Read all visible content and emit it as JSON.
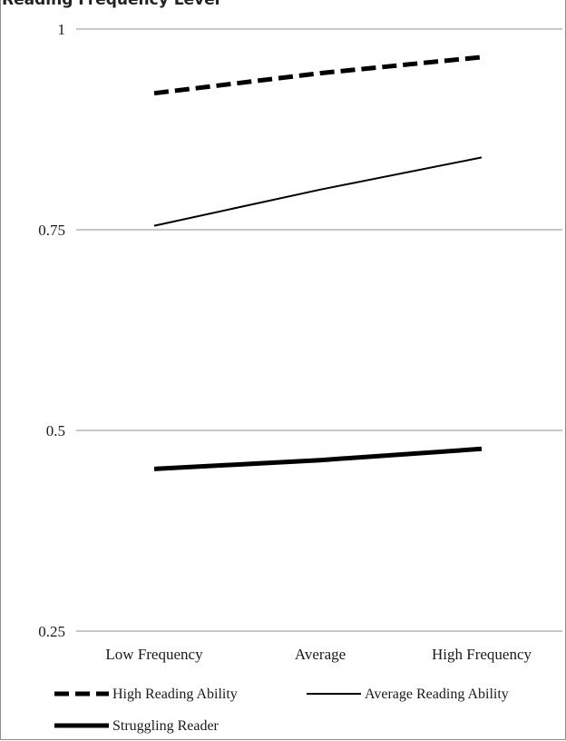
{
  "chart_data": {
    "type": "line",
    "title": "Reading Frequency Level",
    "xlabel": "",
    "ylabel": "",
    "categories": [
      "Low Frequency",
      "Average",
      "High Frequency"
    ],
    "ylim": [
      0.25,
      1
    ],
    "yticks": [
      "0.25",
      "0.5",
      "0.75",
      "1"
    ],
    "grid": true,
    "legend_position": "bottom",
    "series": [
      {
        "name": "High Reading Ability",
        "values": [
          0.92,
          0.945,
          0.965
        ],
        "style": "dashed",
        "color": "#000000"
      },
      {
        "name": "Average Reading Ability",
        "values": [
          0.755,
          0.8,
          0.84
        ],
        "style": "thin",
        "color": "#000000"
      },
      {
        "name": "Struggling Reader",
        "values": [
          0.452,
          0.463,
          0.477
        ],
        "style": "thick",
        "color": "#000000"
      }
    ]
  }
}
